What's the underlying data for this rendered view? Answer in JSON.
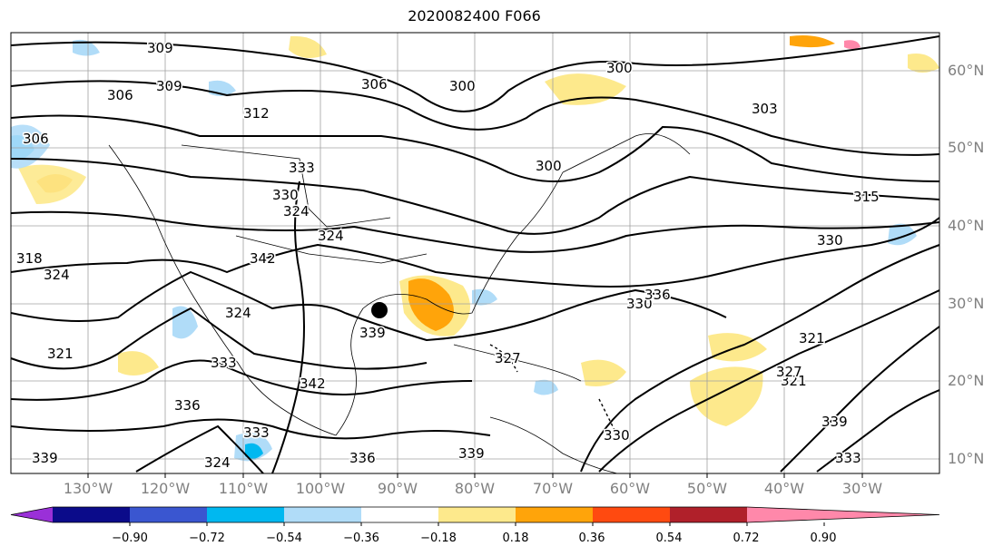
{
  "title": "2020082400 F066",
  "lon_labels": [
    "130°W",
    "120°W",
    "110°W",
    "100°W",
    "90°W",
    "80°W",
    "70°W",
    "60°W",
    "50°W",
    "40°W",
    "30°W"
  ],
  "lat_labels": [
    "60°N",
    "50°N",
    "40°N",
    "30°N",
    "20°N",
    "10°N"
  ],
  "colorbar": {
    "ticks": [
      "−0.90",
      "−0.72",
      "−0.54",
      "−0.36",
      "−0.18",
      "0.18",
      "0.36",
      "0.54",
      "0.72",
      "0.90"
    ],
    "colors": [
      "#9a30d8",
      "#0b0b8a",
      "#3a56d0",
      "#00b8f0",
      "#b0dcf8",
      "#ffffff",
      "#fde98c",
      "#ffa40a",
      "#ff4a10",
      "#b0202a",
      "#ff88aa"
    ]
  },
  "contour_labels": [
    "309",
    "309",
    "312",
    "306",
    "306",
    "300",
    "300",
    "303",
    "300",
    "306",
    "315",
    "324",
    "333",
    "339",
    "342",
    "324",
    "330",
    "318",
    "324",
    "321",
    "330",
    "333",
    "336",
    "342",
    "339",
    "336",
    "339",
    "333",
    "321",
    "327",
    "324",
    "330",
    "336",
    "339",
    "324",
    "330",
    "321",
    "327",
    "333"
  ],
  "marker": {
    "label": "storm-center-marker"
  }
}
